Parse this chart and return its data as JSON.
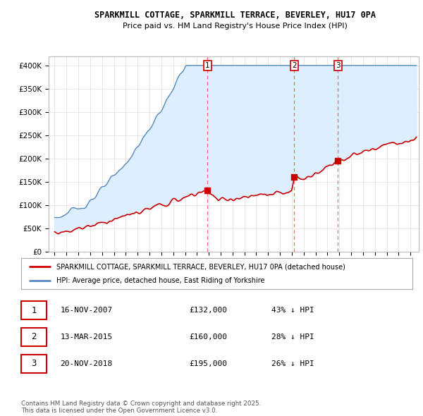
{
  "title": "SPARKMILL COTTAGE, SPARKMILL TERRACE, BEVERLEY, HU17 0PA",
  "subtitle": "Price paid vs. HM Land Registry's House Price Index (HPI)",
  "legend_label_red": "SPARKMILL COTTAGE, SPARKMILL TERRACE, BEVERLEY, HU17 0PA (detached house)",
  "legend_label_blue": "HPI: Average price, detached house, East Riding of Yorkshire",
  "footer": "Contains HM Land Registry data © Crown copyright and database right 2025.\nThis data is licensed under the Open Government Licence v3.0.",
  "transactions": [
    {
      "num": 1,
      "date": "16-NOV-2007",
      "price": "£132,000",
      "pct": "43% ↓ HPI",
      "year": 2007.88
    },
    {
      "num": 2,
      "date": "13-MAR-2015",
      "price": "£160,000",
      "pct": "28% ↓ HPI",
      "year": 2015.2
    },
    {
      "num": 3,
      "date": "20-NOV-2018",
      "price": "£195,000",
      "pct": "26% ↓ HPI",
      "year": 2018.88
    }
  ],
  "transaction_prices": [
    132000,
    160000,
    195000
  ],
  "ylim": [
    0,
    420000
  ],
  "yticks": [
    0,
    50000,
    100000,
    150000,
    200000,
    250000,
    300000,
    350000,
    400000
  ],
  "ytick_labels": [
    "£0",
    "£50K",
    "£100K",
    "£150K",
    "£200K",
    "£250K",
    "£300K",
    "£350K",
    "£400K"
  ],
  "xlim_start": 1994.5,
  "xlim_end": 2025.7,
  "red_color": "#cc0000",
  "blue_color": "#5588bb",
  "fill_color": "#ddeeff",
  "dashed_color": "#ff6666",
  "bg_color": "#ffffff",
  "grid_color": "#dddddd"
}
